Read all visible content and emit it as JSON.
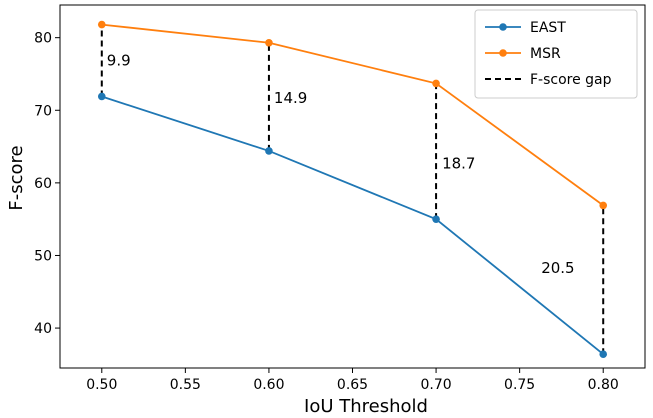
{
  "chart_data": {
    "type": "line",
    "xlabel": "IoU Threshold",
    "ylabel": "F-score",
    "xlim": [
      0.475,
      0.825
    ],
    "ylim": [
      34.5,
      84.5
    ],
    "x": [
      0.5,
      0.6,
      0.7,
      0.8
    ],
    "xticks": [
      "0.50",
      "0.55",
      "0.60",
      "0.65",
      "0.70",
      "0.75",
      "0.80"
    ],
    "xtick_values": [
      0.5,
      0.55,
      0.6,
      0.65,
      0.7,
      0.75,
      0.8
    ],
    "yticks": [
      "40",
      "50",
      "60",
      "70",
      "80"
    ],
    "ytick_values": [
      40,
      50,
      60,
      70,
      80
    ],
    "grid": false,
    "legend_position": "top-right",
    "series": [
      {
        "name": "EAST",
        "values": [
          71.9,
          64.4,
          55.0,
          36.4
        ],
        "color": "#1f77b4"
      },
      {
        "name": "MSR",
        "values": [
          81.8,
          79.3,
          73.7,
          56.9
        ],
        "color": "#ff7f0e"
      }
    ],
    "gap": {
      "name": "F-score gap",
      "labels": [
        "9.9",
        "14.9",
        "18.7",
        "20.5"
      ],
      "color": "#000000"
    }
  }
}
